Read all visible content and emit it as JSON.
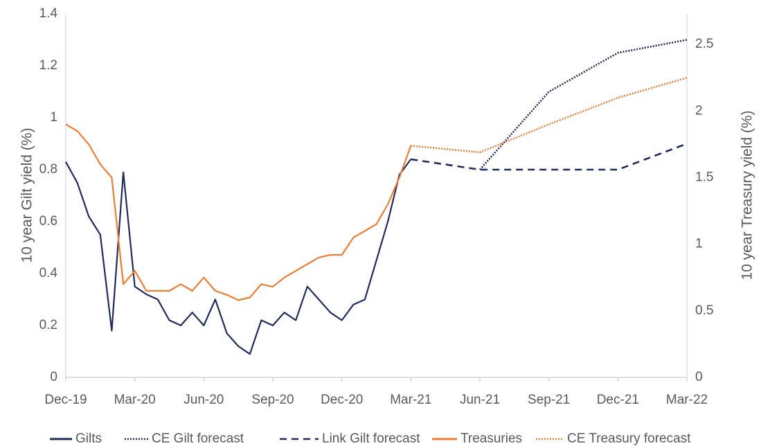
{
  "chart_data": {
    "type": "line",
    "y_label": "10 year Gilt yield (%)",
    "y2_label": "10 year Treasury yield (%)",
    "categories": [
      "Dec-19",
      null,
      null,
      null,
      null,
      null,
      "Mar-20",
      null,
      null,
      null,
      null,
      null,
      "Jun-20",
      null,
      null,
      null,
      null,
      null,
      "Sep-20",
      null,
      null,
      null,
      null,
      null,
      "Dec-20",
      null,
      null,
      null,
      null,
      null,
      "Mar-21",
      null,
      null,
      null,
      null,
      null,
      "Jun-21",
      null,
      null,
      null,
      null,
      null,
      "Sep-21",
      null,
      null,
      null,
      null,
      null,
      "Dec-21",
      null,
      null,
      null,
      null,
      null,
      "Mar-22"
    ],
    "ylim": [
      0,
      1.4
    ],
    "yticks": [
      0,
      0.2,
      0.4,
      0.6,
      0.8,
      1,
      1.2,
      1.4
    ],
    "y2lim": [
      0,
      2.73
    ],
    "y2ticks": [
      0,
      0.5,
      1,
      1.5,
      2,
      2.5
    ],
    "series": [
      {
        "name": "Gilts",
        "color": "#1f2a5c",
        "style": "solid",
        "values": [
          0.83,
          0.75,
          0.62,
          0.55,
          0.18,
          0.79,
          0.35,
          0.32,
          0.3,
          0.22,
          0.2,
          0.25,
          0.2,
          0.3,
          0.17,
          0.12,
          0.09,
          0.22,
          0.2,
          0.25,
          0.22,
          0.35,
          0.3,
          0.25,
          0.22,
          0.28,
          0.3,
          0.45,
          0.6,
          0.78,
          0.84,
          null,
          null,
          null,
          null,
          null,
          null,
          null,
          null,
          null,
          null,
          null,
          null,
          null,
          null,
          null,
          null,
          null,
          null,
          null,
          null,
          null,
          null,
          null,
          null
        ]
      },
      {
        "name": "CE Gilt forecast",
        "color": "#1f2a5c",
        "style": "dotted",
        "x": [
          "Jun-21",
          "Sep-21",
          "Dec-21",
          "Mar-22"
        ],
        "values": [
          0.8,
          1.1,
          1.25,
          1.3
        ]
      },
      {
        "name": "Link Gilt forecast",
        "color": "#1f2a5c",
        "style": "dashed",
        "x": [
          "Mar-21",
          "Jun-21",
          "Sep-21",
          "Dec-21",
          "Mar-22"
        ],
        "values": [
          0.84,
          0.8,
          0.8,
          0.8,
          0.9
        ]
      },
      {
        "name": "Treasuries",
        "color": "#ed7d31",
        "style": "solid",
        "axis": "y2",
        "values": [
          1.9,
          1.85,
          1.75,
          1.6,
          1.5,
          0.7,
          0.8,
          0.65,
          0.65,
          0.65,
          0.7,
          0.65,
          0.75,
          0.65,
          0.62,
          0.58,
          0.6,
          0.7,
          0.68,
          0.75,
          0.8,
          0.85,
          0.9,
          0.92,
          0.92,
          1.05,
          1.1,
          1.15,
          1.3,
          1.5,
          1.74,
          null,
          null,
          null,
          null,
          null,
          null,
          null,
          null,
          null,
          null,
          null,
          null,
          null,
          null,
          null,
          null,
          null,
          null,
          null,
          null,
          null,
          null,
          null,
          null
        ]
      },
      {
        "name": "CE Treasury forecast",
        "color": "#ed7d31",
        "style": "dotted",
        "axis": "y2",
        "x": [
          "Mar-21",
          "Jun-21",
          "Sep-21",
          "Dec-21",
          "Mar-22"
        ],
        "values": [
          1.74,
          1.69,
          1.9,
          2.1,
          2.25
        ]
      }
    ]
  }
}
